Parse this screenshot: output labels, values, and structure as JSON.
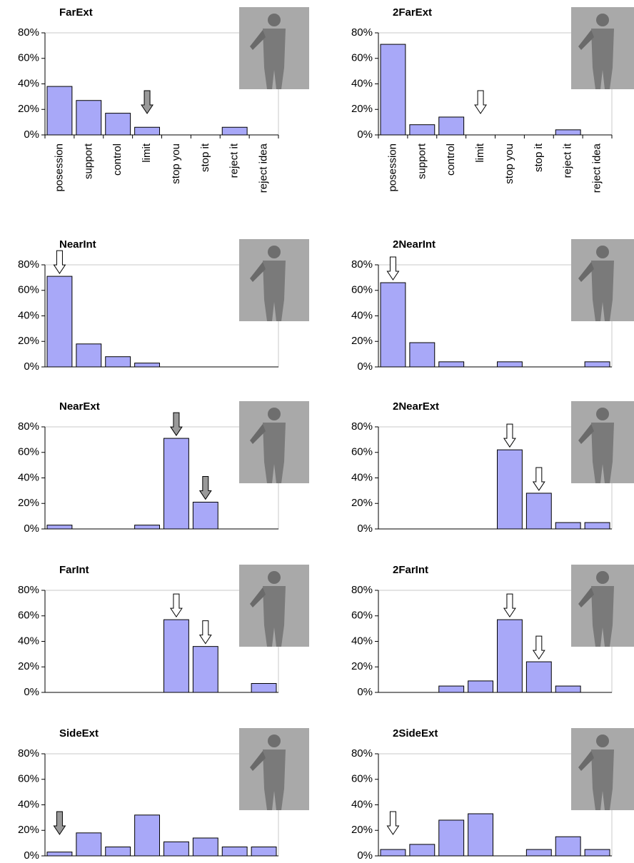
{
  "chart_data": [
    {
      "type": "bar",
      "title": "FarExt",
      "categories": [
        "posession",
        "support",
        "control",
        "limit",
        "stop you",
        "stop it",
        "reject it",
        "reject idea"
      ],
      "values": [
        38,
        27,
        17,
        6,
        0,
        0,
        6,
        0
      ],
      "color": "#a8a8f8",
      "ylim": [
        0,
        80
      ],
      "yticks": [
        {
          "value": 0,
          "label": "0%"
        },
        {
          "value": 20,
          "label": "20%"
        },
        {
          "value": 40,
          "label": "40%"
        },
        {
          "value": 60,
          "label": "60%"
        },
        {
          "value": 80,
          "label": "80%"
        }
      ],
      "arrow_categories": [
        3
      ],
      "arrow_fill": "#999999"
    },
    {
      "type": "bar",
      "title": "2FarExt",
      "categories": [
        "posession",
        "support",
        "control",
        "limit",
        "stop you",
        "stop it",
        "reject it",
        "reject idea"
      ],
      "values": [
        71,
        8,
        14,
        0,
        0,
        0,
        4,
        0
      ],
      "color": "#a8a8f8",
      "ylim": [
        0,
        80
      ],
      "yticks": [
        {
          "value": 0,
          "label": "0%"
        },
        {
          "value": 20,
          "label": "20%"
        },
        {
          "value": 40,
          "label": "40%"
        },
        {
          "value": 60,
          "label": "60%"
        },
        {
          "value": 80,
          "label": "80%"
        }
      ],
      "arrow_categories": [
        3
      ],
      "arrow_fill": "#ffffff"
    },
    {
      "type": "bar",
      "title": "NearInt",
      "categories": [
        null,
        null,
        null,
        null,
        null,
        null,
        null,
        null
      ],
      "values": [
        71,
        18,
        8,
        3,
        0,
        0,
        0,
        0
      ],
      "color": "#a8a8f8",
      "ylim": [
        0,
        80
      ],
      "yticks": [
        {
          "value": 0,
          "label": "0%"
        },
        {
          "value": 20,
          "label": "20%"
        },
        {
          "value": 40,
          "label": "40%"
        },
        {
          "value": 60,
          "label": "60%"
        },
        {
          "value": 80,
          "label": "80%"
        }
      ],
      "arrow_categories": [
        0
      ],
      "arrow_fill": "#ffffff"
    },
    {
      "type": "bar",
      "title": "2NearInt",
      "categories": [
        null,
        null,
        null,
        null,
        null,
        null,
        null,
        null
      ],
      "values": [
        66,
        19,
        4,
        0,
        4,
        0,
        0,
        4
      ],
      "color": "#a8a8f8",
      "ylim": [
        0,
        80
      ],
      "yticks": [
        {
          "value": 0,
          "label": "0%"
        },
        {
          "value": 20,
          "label": "20%"
        },
        {
          "value": 40,
          "label": "40%"
        },
        {
          "value": 60,
          "label": "60%"
        },
        {
          "value": 80,
          "label": "80%"
        }
      ],
      "arrow_categories": [
        0
      ],
      "arrow_fill": "#ffffff"
    },
    {
      "type": "bar",
      "title": "NearExt",
      "categories": [
        null,
        null,
        null,
        null,
        null,
        null,
        null,
        null
      ],
      "values": [
        3,
        0,
        0,
        3,
        71,
        21,
        0,
        0
      ],
      "color": "#a8a8f8",
      "ylim": [
        0,
        80
      ],
      "yticks": [
        {
          "value": 0,
          "label": "0%"
        },
        {
          "value": 20,
          "label": "20%"
        },
        {
          "value": 40,
          "label": "40%"
        },
        {
          "value": 60,
          "label": "60%"
        },
        {
          "value": 80,
          "label": "80%"
        }
      ],
      "arrow_categories": [
        4,
        5
      ],
      "arrow_fill": "#999999"
    },
    {
      "type": "bar",
      "title": "2NearExt",
      "categories": [
        null,
        null,
        null,
        null,
        null,
        null,
        null,
        null
      ],
      "values": [
        0,
        0,
        0,
        0,
        62,
        28,
        5,
        5
      ],
      "color": "#a8a8f8",
      "ylim": [
        0,
        80
      ],
      "yticks": [
        {
          "value": 0,
          "label": "0%"
        },
        {
          "value": 20,
          "label": "20%"
        },
        {
          "value": 40,
          "label": "40%"
        },
        {
          "value": 60,
          "label": "60%"
        },
        {
          "value": 80,
          "label": "80%"
        }
      ],
      "arrow_categories": [
        4,
        5
      ],
      "arrow_fill": "#ffffff"
    },
    {
      "type": "bar",
      "title": "FarInt",
      "categories": [
        null,
        null,
        null,
        null,
        null,
        null,
        null,
        null
      ],
      "values": [
        0,
        0,
        0,
        0,
        57,
        36,
        0,
        7
      ],
      "color": "#a8a8f8",
      "ylim": [
        0,
        80
      ],
      "yticks": [
        {
          "value": 0,
          "label": "0%"
        },
        {
          "value": 20,
          "label": "20%"
        },
        {
          "value": 40,
          "label": "40%"
        },
        {
          "value": 60,
          "label": "60%"
        },
        {
          "value": 80,
          "label": "80%"
        }
      ],
      "arrow_categories": [
        4,
        5
      ],
      "arrow_fill": "#ffffff"
    },
    {
      "type": "bar",
      "title": "2FarInt",
      "categories": [
        null,
        null,
        null,
        null,
        null,
        null,
        null,
        null
      ],
      "values": [
        0,
        0,
        5,
        9,
        57,
        24,
        5,
        0
      ],
      "color": "#a8a8f8",
      "ylim": [
        0,
        80
      ],
      "yticks": [
        {
          "value": 0,
          "label": "0%"
        },
        {
          "value": 20,
          "label": "20%"
        },
        {
          "value": 40,
          "label": "40%"
        },
        {
          "value": 60,
          "label": "60%"
        },
        {
          "value": 80,
          "label": "80%"
        }
      ],
      "arrow_categories": [
        4,
        5
      ],
      "arrow_fill": "#ffffff"
    },
    {
      "type": "bar",
      "title": "SideExt",
      "categories": [
        null,
        null,
        null,
        null,
        null,
        null,
        null,
        null
      ],
      "values": [
        3,
        18,
        7,
        32,
        11,
        14,
        7,
        7
      ],
      "color": "#a8a8f8",
      "ylim": [
        0,
        80
      ],
      "yticks": [
        {
          "value": 0,
          "label": "0%"
        },
        {
          "value": 20,
          "label": "20%"
        },
        {
          "value": 40,
          "label": "40%"
        },
        {
          "value": 60,
          "label": "60%"
        },
        {
          "value": 80,
          "label": "80%"
        }
      ],
      "arrow_categories": [
        0
      ],
      "arrow_fill": "#999999"
    },
    {
      "type": "bar",
      "title": "2SideExt",
      "categories": [
        null,
        null,
        null,
        null,
        null,
        null,
        null,
        null
      ],
      "values": [
        5,
        9,
        28,
        33,
        0,
        5,
        15,
        5
      ],
      "color": "#a8a8f8",
      "ylim": [
        0,
        80
      ],
      "yticks": [
        {
          "value": 0,
          "label": "0%"
        },
        {
          "value": 20,
          "label": "20%"
        },
        {
          "value": 40,
          "label": "40%"
        },
        {
          "value": 60,
          "label": "60%"
        },
        {
          "value": 80,
          "label": "80%"
        }
      ],
      "arrow_categories": [
        0
      ],
      "arrow_fill": "#ffffff"
    }
  ]
}
